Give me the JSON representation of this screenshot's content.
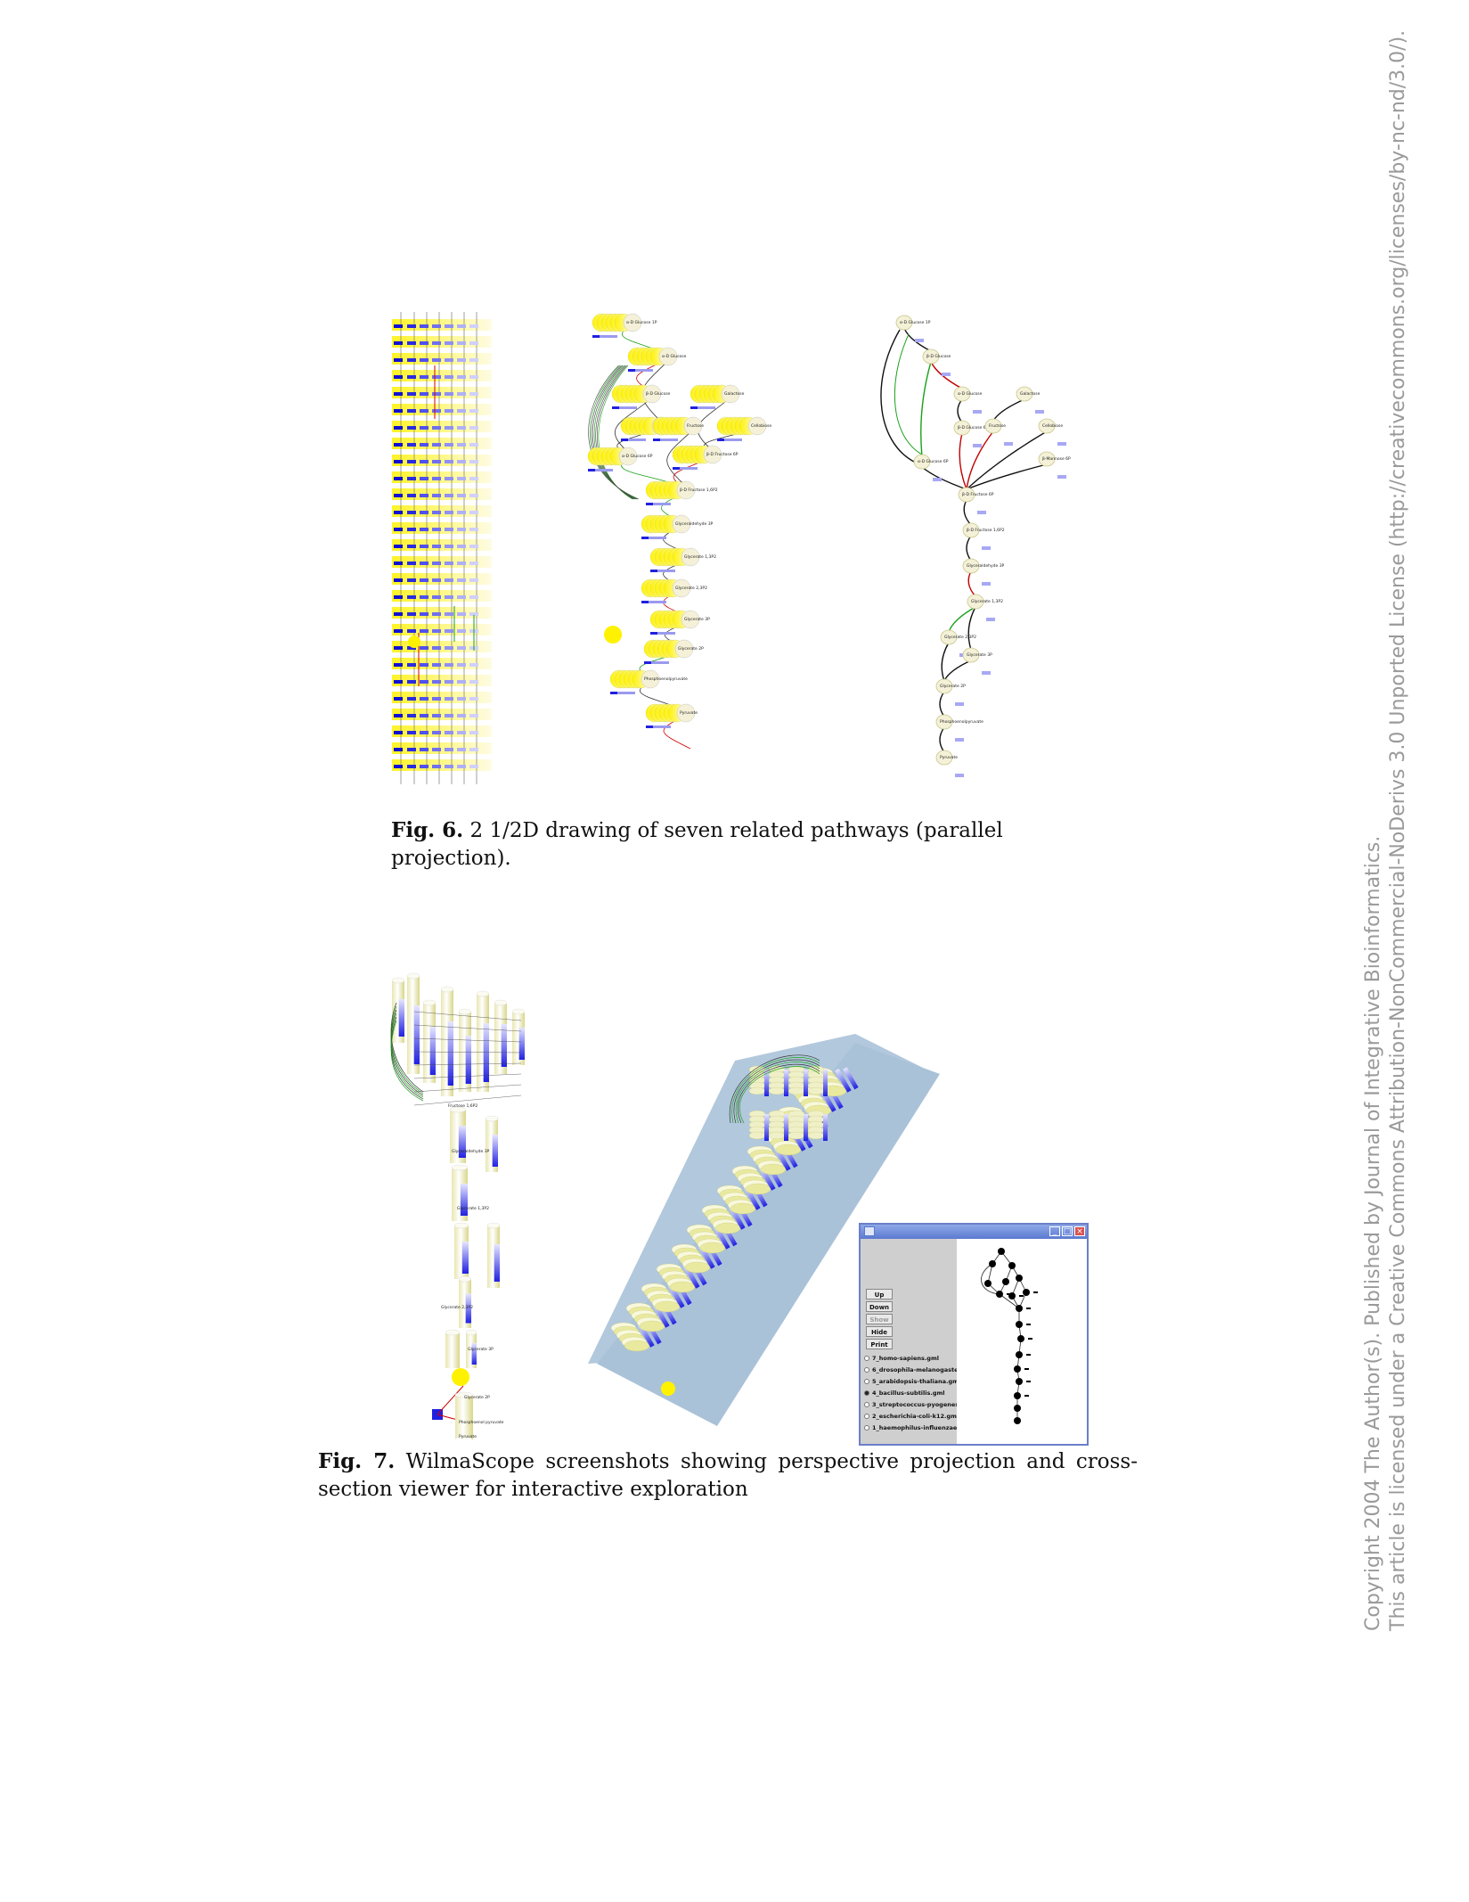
{
  "fig6": {
    "caption_label": "Fig. 6.",
    "caption_text": "2 1/2D drawing of seven related pathways (parallel projection).",
    "middle_nodes": [
      "α-D Glucose 1P",
      "α-D Glucose",
      "β-D Glucose",
      "β-D Glucose 6P",
      "α-D Glucose 6P",
      "Galactose",
      "Fructose",
      "Cellobiose",
      "β-D Fructose 6P",
      "β-D Fructose 1,6P2",
      "Glyceraldehyde 3P",
      "Glycerate 1,3P2",
      "Glycerate 2,3P2",
      "Glycerate 3P",
      "Glycerate 2P",
      "Phosphoenolpyruvate",
      "Pyruvate"
    ],
    "right_nodes": [
      "α-D Glucose 1P",
      "β-D Glucose",
      "α-D Glucose",
      "β-D Glucose 6P",
      "Galactose",
      "Fructose",
      "Cellobiose",
      "α-D Glucose 6P",
      "β-Mannose 6P",
      "β-D Fructose 6P",
      "β-D Fructose 1,6P2",
      "Glyceraldehyde 3P",
      "Glycerate 1,3P2",
      "Glycerate 2,3P2",
      "Glycerate 3P",
      "Glycerate 2P",
      "Phosphoenolpyruvate",
      "Pyruvate"
    ]
  },
  "fig7": {
    "caption_label": "Fig. 7.",
    "caption_text": "WilmaScope screenshots showing perspective projection and cross-section viewer for interactive exploration",
    "left_nodes": [
      "Fructose 1,6P2",
      "Glyceraldehyde 3P",
      "Glycerate 1,3P2",
      "Glycerate 2,3P2",
      "Glycerate 3P",
      "Glycerate 2P",
      "Phosphoenol pyruvate",
      "Pyruvate"
    ],
    "viewer": {
      "buttons": [
        "Up",
        "Down",
        "Show",
        "Hide",
        "Print"
      ],
      "files": [
        {
          "name": "7_homo-sapiens.gml",
          "selected": false
        },
        {
          "name": "6_drosophila-melanogaster.gml",
          "selected": false
        },
        {
          "name": "5_arabidopsis-thaliana.gml",
          "selected": false
        },
        {
          "name": "4_bacillus-subtilis.gml",
          "selected": true
        },
        {
          "name": "3_streptococcus-pyogenes.gml",
          "selected": false
        },
        {
          "name": "2_escherichia-coli-k12.gml",
          "selected": false
        },
        {
          "name": "1_haemophilus-influenzae.gml",
          "selected": false
        }
      ],
      "window_buttons": [
        "_",
        "□",
        "×"
      ]
    }
  },
  "side_note": {
    "line1": "Copyright 2004 The Author(s). Published by Journal of Integrative Bioinformatics.",
    "line2": "This article is licensed under a Creative Commons Attribution-NonCommercial-NoDerivs 3.0 Unported License (http://creativecommons.org/licenses/by-nc-nd/3.0/)."
  }
}
